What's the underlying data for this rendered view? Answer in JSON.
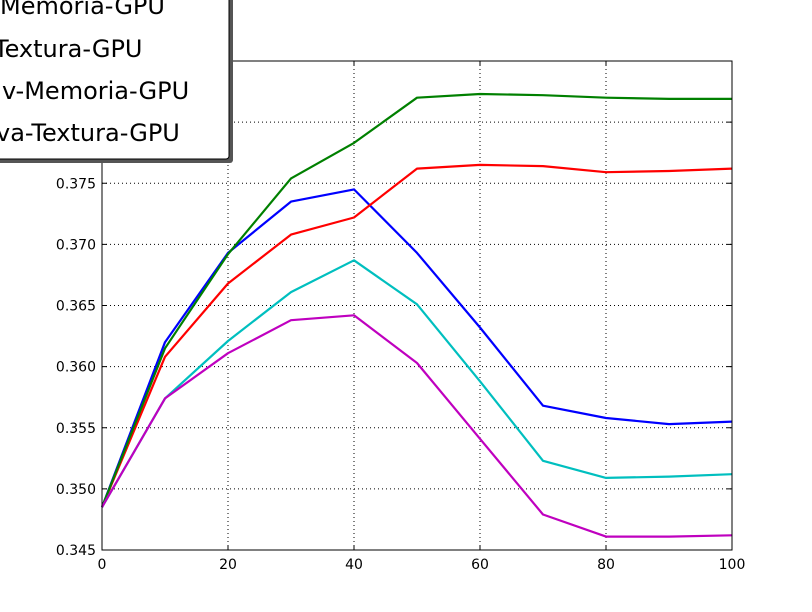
{
  "chart_data": {
    "type": "line",
    "x": [
      0,
      10,
      20,
      30,
      40,
      50,
      60,
      70,
      80,
      90,
      100
    ],
    "xlim": [
      0,
      100
    ],
    "ylim": [
      0.345,
      0.385
    ],
    "xticks": [
      "0",
      "20",
      "40",
      "60",
      "80",
      "100"
    ],
    "yticks": [
      "0.345",
      "0.350",
      "0.355",
      "0.360",
      "0.365",
      "0.370",
      "0.375"
    ],
    "grid": true,
    "legend_position": "top-left",
    "series": [
      {
        "name": "Memoria-GPU",
        "color": "#0000ff",
        "values": [
          0.3485,
          0.362,
          0.3693,
          0.3735,
          0.3745,
          0.3693,
          0.3632,
          0.3568,
          0.3558,
          0.3553,
          0.3555
        ]
      },
      {
        "name": "Textura-GPU",
        "color": "#ff0000",
        "values": [
          0.3485,
          0.3608,
          0.3668,
          0.3708,
          0.3722,
          0.3762,
          0.3765,
          0.3764,
          0.3759,
          0.376,
          0.3762
        ]
      },
      {
        "name": "v-Memoria-GPU",
        "color": "#008000",
        "values": [
          0.3485,
          0.3615,
          0.3692,
          0.3754,
          0.3783,
          0.382,
          0.3823,
          0.3822,
          0.382,
          0.3819,
          0.3819
        ]
      },
      {
        "name": "va-Textura-GPU",
        "color": "#00bfbf",
        "values": [
          0.3485,
          0.3574,
          0.3621,
          0.3661,
          0.3687,
          0.3651,
          0.3588,
          0.3523,
          0.3509,
          0.351,
          0.3512
        ]
      },
      {
        "name": "",
        "color": "#bf00bf",
        "values": [
          0.3485,
          0.3574,
          0.3611,
          0.3638,
          0.3642,
          0.3603,
          0.3541,
          0.3479,
          0.3461,
          0.3461,
          0.3462
        ]
      }
    ]
  }
}
